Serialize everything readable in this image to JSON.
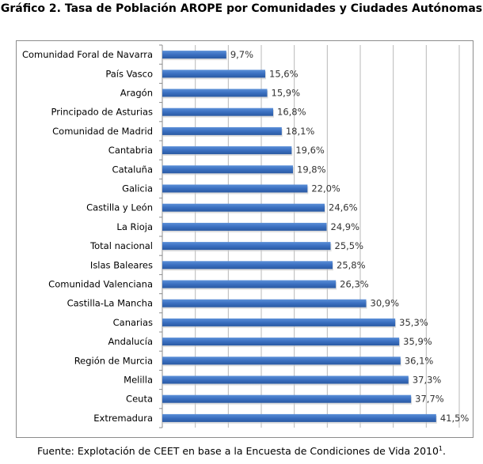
{
  "chart_data": {
    "type": "bar",
    "orientation": "horizontal",
    "title": "Gráfico  2. Tasa de Población AROPE por Comunidades y Ciudades Autónomas",
    "categories": [
      "Comunidad Foral de Navarra",
      "País Vasco",
      "Aragón",
      "Principado de Asturias",
      "Comunidad de Madrid",
      "Cantabria",
      "Cataluña",
      "Galicia",
      "Castilla y León",
      "La Rioja",
      "Total nacional",
      "Islas Baleares",
      "Comunidad Valenciana",
      "Castilla-La Mancha",
      "Canarias",
      "Andalucía",
      "Región de Murcia",
      "Melilla",
      "Ceuta",
      "Extremadura"
    ],
    "values": [
      9.7,
      15.6,
      15.9,
      16.8,
      18.1,
      19.6,
      19.8,
      22.0,
      24.6,
      24.9,
      25.5,
      25.8,
      26.3,
      30.9,
      35.3,
      35.9,
      36.1,
      37.3,
      37.7,
      41.5
    ],
    "data_labels": [
      "9,7%",
      "15,6%",
      "15,9%",
      "16,8%",
      "18,1%",
      "19,6%",
      "19,8%",
      "22,0%",
      "24,6%",
      "24,9%",
      "25,5%",
      "25,8%",
      "26,3%",
      "30,9%",
      "35,3%",
      "35,9%",
      "36,1%",
      "37,3%",
      "37,7%",
      "41,5%"
    ],
    "xlim": [
      0,
      45
    ],
    "grid": "vertical, every 5",
    "bar_color": "#3a6fc0",
    "xlabel": "",
    "ylabel": ""
  },
  "source": {
    "text": "Fuente: Explotación de CEET en base a la Encuesta de Condiciones de Vida 2010",
    "footnote": "1",
    "end": "."
  }
}
